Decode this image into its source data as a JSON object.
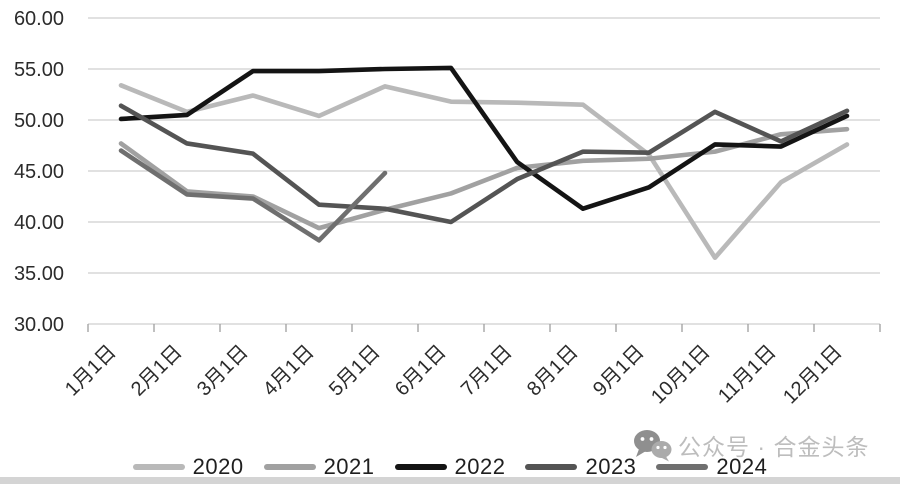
{
  "watermark": {
    "text": "公众号 · 合金头条",
    "icon": "wechat-icon"
  },
  "chart_data": {
    "type": "line",
    "title": "",
    "xlabel": "",
    "ylabel": "",
    "ylim": [
      30,
      60
    ],
    "ytick_step": 5,
    "ytick_labels": [
      "60.00",
      "55.00",
      "50.00",
      "45.00",
      "40.00",
      "35.00",
      "30.00"
    ],
    "grid": "horizontal",
    "legend_position": "bottom",
    "x": [
      "1月1日",
      "2月1日",
      "3月1日",
      "4月1日",
      "5月1日",
      "6月1日",
      "7月1日",
      "8月1日",
      "9月1日",
      "10月1日",
      "11月1日",
      "12月1日"
    ],
    "series": [
      {
        "name": "2020",
        "color": "#b9b9b9",
        "values": [
          53.4,
          50.8,
          52.4,
          50.4,
          53.3,
          51.8,
          51.7,
          51.5,
          46.6,
          36.5,
          43.9,
          47.6
        ]
      },
      {
        "name": "2021",
        "color": "#a1a1a1",
        "values": [
          47.7,
          43.0,
          42.5,
          39.4,
          41.2,
          42.8,
          45.3,
          46.0,
          46.2,
          46.9,
          48.6,
          49.1
        ]
      },
      {
        "name": "2022",
        "color": "#141414",
        "values": [
          50.1,
          50.5,
          54.8,
          54.8,
          55.0,
          55.1,
          45.9,
          41.3,
          43.4,
          47.6,
          47.4,
          50.4
        ]
      },
      {
        "name": "2023",
        "color": "#545454",
        "values": [
          51.4,
          47.7,
          46.7,
          41.7,
          41.3,
          40.0,
          44.2,
          46.9,
          46.8,
          50.8,
          47.9,
          50.9
        ]
      },
      {
        "name": "2024",
        "color": "#6f6f6f",
        "values": [
          47.0,
          42.7,
          42.3,
          38.2,
          44.8,
          null,
          null,
          null,
          null,
          null,
          null,
          null
        ]
      }
    ]
  }
}
